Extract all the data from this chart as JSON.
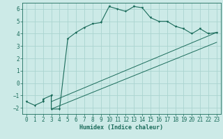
{
  "bg_color": "#cceae7",
  "grid_color": "#aad4d0",
  "line_color": "#1a6b5a",
  "marker_color": "#1a6b5a",
  "xlabel": "Humidex (Indice chaleur)",
  "xlim": [
    -0.5,
    23.5
  ],
  "ylim": [
    -2.5,
    6.5
  ],
  "xticks": [
    0,
    1,
    2,
    3,
    4,
    5,
    6,
    7,
    8,
    9,
    10,
    11,
    12,
    13,
    14,
    15,
    16,
    17,
    18,
    19,
    20,
    21,
    22,
    23
  ],
  "yticks": [
    -2,
    -1,
    0,
    1,
    2,
    3,
    4,
    5,
    6
  ],
  "series1_x": [
    0,
    1,
    2,
    2,
    3,
    3,
    4,
    5,
    6,
    7,
    8,
    9,
    10,
    11,
    12,
    13,
    14,
    15,
    16,
    17,
    18,
    19,
    20,
    21,
    22,
    23
  ],
  "series1_y": [
    -1.5,
    -1.8,
    -1.5,
    -1.3,
    -1.0,
    -2.1,
    -2.1,
    3.6,
    4.1,
    4.5,
    4.8,
    4.9,
    6.2,
    6.0,
    5.8,
    6.2,
    6.1,
    5.3,
    5.0,
    5.0,
    4.6,
    4.4,
    4.0,
    4.4,
    4.0,
    4.1
  ],
  "series2_x": [
    3,
    23
  ],
  "series2_y": [
    -1.5,
    4.1
  ],
  "series3_x": [
    3,
    23
  ],
  "series3_y": [
    -2.1,
    3.3
  ],
  "xlabel_fontsize": 6.0,
  "tick_fontsize": 5.5
}
